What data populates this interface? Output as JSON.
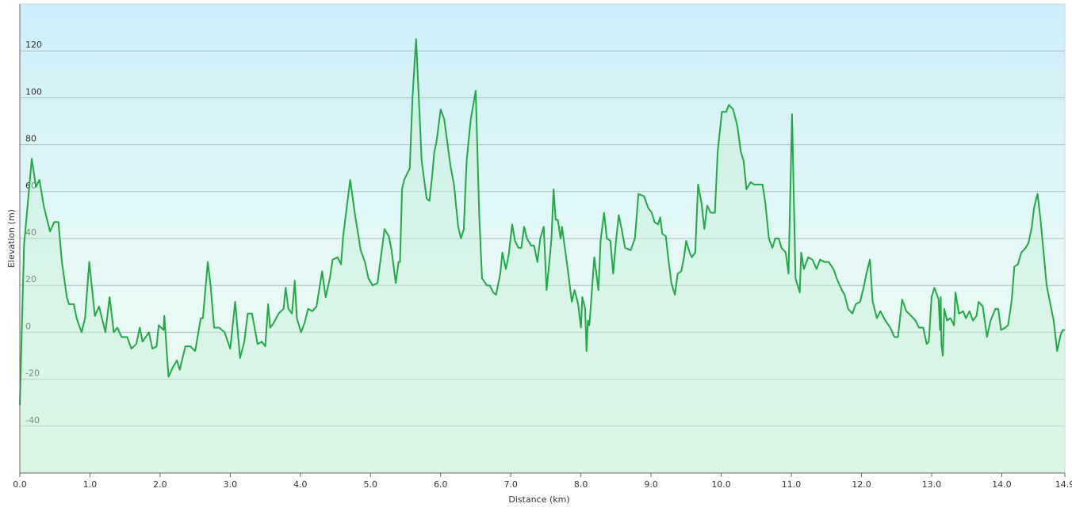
{
  "chart_data": {
    "type": "area",
    "y_label": "Elevation (m)",
    "x_label": "Distance  (km)",
    "color": "#22a845",
    "fill_color": "#c8f0d8",
    "grid": true,
    "xlim": [
      0,
      14.9
    ],
    "ylim": [
      -60,
      140
    ],
    "xticks": [
      {
        "value": 0,
        "label": "0.0"
      },
      {
        "value": 1,
        "label": "1.0"
      },
      {
        "value": 2,
        "label": "2.0"
      },
      {
        "value": 3,
        "label": "3.0"
      },
      {
        "value": 4,
        "label": "4.0"
      },
      {
        "value": 5,
        "label": "5.0"
      },
      {
        "value": 6,
        "label": "6.0"
      },
      {
        "value": 7,
        "label": "7.0"
      },
      {
        "value": 8,
        "label": "8.0"
      },
      {
        "value": 9,
        "label": "9.0"
      },
      {
        "value": 10,
        "label": "10.0"
      },
      {
        "value": 11,
        "label": "11.0"
      },
      {
        "value": 12,
        "label": "12.0"
      },
      {
        "value": 13,
        "label": "13.0"
      },
      {
        "value": 14,
        "label": "14.0"
      },
      14.9
    ],
    "yticks": [
      -40,
      -20,
      0,
      20,
      40,
      60,
      80,
      100,
      120
    ],
    "x": [
      0,
      0.06,
      0.17,
      0.23,
      0.28,
      0.34,
      0.43,
      0.49,
      0.55,
      0.6,
      0.67,
      0.7,
      0.77,
      0.81,
      0.88,
      0.93,
      0.99,
      1.07,
      1.13,
      1.22,
      1.28,
      1.34,
      1.39,
      1.45,
      1.53,
      1.59,
      1.66,
      1.71,
      1.75,
      1.84,
      1.89,
      1.95,
      1.98,
      2.05,
      2.06,
      2.12,
      2.18,
      2.24,
      2.28,
      2.36,
      2.43,
      2.5,
      2.58,
      2.61,
      2.68,
      2.72,
      2.77,
      2.84,
      2.92,
      3,
      3.07,
      3.14,
      3.2,
      3.25,
      3.31,
      3.39,
      3.45,
      3.5,
      3.54,
      3.57,
      3.62,
      3.69,
      3.76,
      3.79,
      3.83,
      3.88,
      3.92,
      3.95,
      4.01,
      4.06,
      4.11,
      4.17,
      4.23,
      4.31,
      4.36,
      4.42,
      4.46,
      4.53,
      4.58,
      4.61,
      4.71,
      4.78,
      4.86,
      4.92,
      4.97,
      5.03,
      5.1,
      5.2,
      5.26,
      5.3,
      5.36,
      5.4,
      5.42,
      5.45,
      5.48,
      5.56,
      5.6,
      5.65,
      5.73,
      5.8,
      5.84,
      5.88,
      5.91,
      5.94,
      6,
      6.05,
      6.14,
      6.19,
      6.25,
      6.29,
      6.33,
      6.37,
      6.43,
      6.5,
      6.55,
      6.59,
      6.66,
      6.7,
      6.75,
      6.79,
      6.85,
      6.88,
      6.93,
      6.97,
      7.02,
      7.06,
      7.11,
      7.15,
      7.19,
      7.23,
      7.29,
      7.33,
      7.38,
      7.42,
      7.47,
      7.51,
      7.55,
      7.58,
      7.61,
      7.64,
      7.67,
      7.71,
      7.73,
      7.78,
      7.82,
      7.87,
      7.91,
      7.96,
      8,
      8.02,
      8.06,
      8.08,
      8.1,
      8.12,
      8.15,
      8.19,
      8.25,
      8.28,
      8.33,
      8.37,
      8.42,
      8.46,
      8.5,
      8.54,
      8.58,
      8.63,
      8.71,
      8.77,
      8.82,
      8.9,
      8.96,
      9.01,
      9.05,
      9.1,
      9.13,
      9.16,
      9.21,
      9.24,
      9.29,
      9.34,
      9.38,
      9.43,
      9.47,
      9.5,
      9.55,
      9.58,
      9.63,
      9.67,
      9.72,
      9.76,
      9.8,
      9.85,
      9.91,
      9.95,
      10.01,
      10.07,
      10.11,
      10.17,
      10.23,
      10.28,
      10.32,
      10.36,
      10.42,
      10.47,
      10.52,
      10.59,
      10.63,
      10.68,
      10.73,
      10.77,
      10.82,
      10.86,
      10.92,
      10.96,
      11.01,
      11.06,
      11.12,
      11.14,
      11.18,
      11.24,
      11.3,
      11.36,
      11.41,
      11.47,
      11.53,
      11.6,
      11.66,
      11.72,
      11.76,
      11.81,
      11.87,
      11.92,
      11.98,
      12.03,
      12.07,
      12.12,
      12.16,
      12.22,
      12.27,
      12.34,
      12.41,
      12.47,
      12.52,
      12.58,
      12.64,
      12.71,
      12.77,
      12.82,
      12.88,
      12.93,
      12.96,
      13,
      13.04,
      13.1,
      13.12,
      13.13,
      13.14,
      13.16,
      13.18,
      13.22,
      13.27,
      13.32,
      13.34,
      13.39,
      13.45,
      13.49,
      13.54,
      13.59,
      13.64,
      13.67,
      13.73,
      13.79,
      13.84,
      13.91,
      13.95,
      13.99,
      14.05,
      14.09,
      14.14,
      14.18,
      14.23,
      14.28,
      14.34,
      14.38,
      14.43,
      14.46,
      14.51,
      14.55,
      14.6,
      14.64,
      14.68,
      14.74,
      14.79,
      14.84,
      14.87,
      14.9
    ],
    "values": [
      -31,
      37,
      74,
      62,
      65,
      54,
      43,
      47,
      47,
      30,
      15,
      12,
      12,
      6,
      0,
      6,
      30,
      7,
      11,
      0,
      15,
      0,
      2,
      -2,
      -2,
      -7,
      -5,
      2,
      -4,
      0,
      -7,
      -6,
      3,
      1,
      7,
      -19,
      -15,
      -12,
      -16,
      -6,
      -6,
      -8,
      6,
      6,
      30,
      20,
      2,
      2,
      0,
      -7,
      13,
      -11,
      -4,
      8,
      8,
      -5,
      -4,
      -6,
      12,
      2,
      4,
      8,
      10,
      19,
      10,
      8,
      22,
      6,
      0,
      4,
      10,
      9,
      11,
      26,
      15,
      23,
      31,
      32,
      29,
      41,
      65,
      50,
      35,
      30,
      23,
      20,
      21,
      44,
      41,
      35,
      21,
      30,
      30,
      61,
      65,
      70,
      101,
      125,
      73,
      57,
      56,
      67,
      77,
      81,
      95,
      91,
      71,
      63,
      45,
      40,
      44,
      73,
      91,
      103,
      50,
      23,
      20,
      20,
      17,
      16,
      25,
      34,
      27,
      33,
      46,
      39,
      36,
      36,
      45,
      40,
      37,
      37,
      30,
      40,
      45,
      18,
      30,
      40,
      61,
      48,
      48,
      40,
      45,
      34,
      25,
      13,
      18,
      12,
      2,
      15,
      10,
      -8,
      5,
      3,
      15,
      32,
      18,
      39,
      51,
      40,
      39,
      25,
      39,
      50,
      44,
      36,
      35,
      40,
      59,
      58,
      53,
      51,
      47,
      46,
      49,
      42,
      41,
      33,
      21,
      16,
      25,
      26,
      32,
      39,
      34,
      32,
      34,
      63,
      55,
      44,
      54,
      51,
      51,
      77,
      94,
      94,
      97,
      95,
      88,
      77,
      73,
      61,
      64,
      63,
      63,
      63,
      55,
      40,
      36,
      40,
      40,
      36,
      34,
      25,
      93,
      23,
      17,
      34,
      27,
      32,
      31,
      27,
      31,
      30,
      30,
      27,
      22,
      18,
      16,
      10,
      8,
      12,
      13,
      19,
      25,
      31,
      13,
      6,
      9,
      5,
      2,
      -2,
      -2,
      14,
      9,
      7,
      5,
      2,
      2,
      -5,
      -4,
      15,
      19,
      14,
      1,
      15,
      -5,
      -10,
      10,
      5,
      6,
      3,
      17,
      8,
      9,
      6,
      9,
      5,
      7,
      13,
      11,
      -2,
      5,
      10,
      10,
      1,
      2,
      3,
      13,
      28,
      29,
      34,
      36,
      38,
      45,
      53,
      59,
      49,
      33,
      20,
      14,
      5,
      -8,
      -1,
      1,
      1
    ]
  }
}
